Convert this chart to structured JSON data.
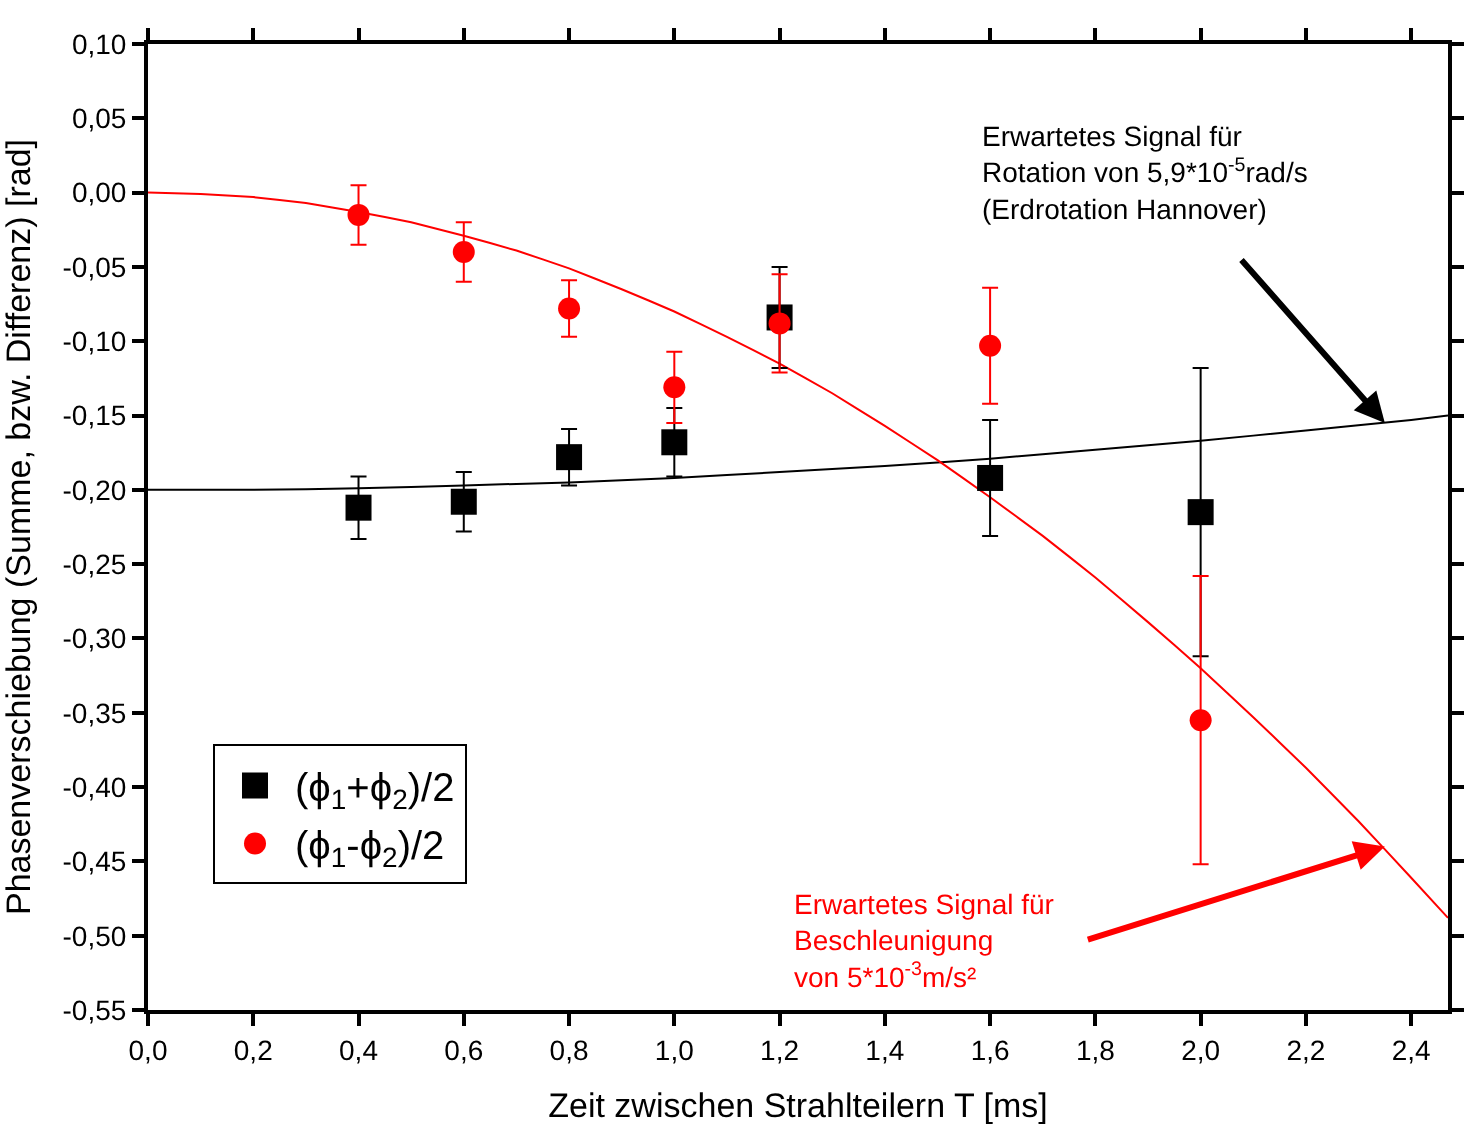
{
  "chart_data": {
    "type": "scatter",
    "xlabel": "Zeit zwischen Strahlteilern T [ms]",
    "ylabel": "Phasenverschiebung (Summe, bzw. Differenz) [rad]",
    "xlim": [
      0,
      2.47
    ],
    "ylim": [
      -0.55,
      0.1
    ],
    "xticks": [
      {
        "value": 0,
        "label": "0,0"
      },
      {
        "value": 0.2,
        "label": "0,2"
      },
      {
        "value": 0.4,
        "label": "0,4"
      },
      {
        "value": 0.6,
        "label": "0,6"
      },
      {
        "value": 0.8,
        "label": "0,8"
      },
      {
        "value": 1.0,
        "label": "1,0"
      },
      {
        "value": 1.2,
        "label": "1,2"
      },
      {
        "value": 1.4,
        "label": "1,4"
      },
      {
        "value": 1.6,
        "label": "1,6"
      },
      {
        "value": 1.8,
        "label": "1,8"
      },
      {
        "value": 2.0,
        "label": "2,0"
      },
      {
        "value": 2.2,
        "label": "2,2"
      },
      {
        "value": 2.4,
        "label": "2,4"
      }
    ],
    "yticks": [
      {
        "value": 0.1,
        "label": "0,10"
      },
      {
        "value": 0.05,
        "label": "0,05"
      },
      {
        "value": 0,
        "label": "0,00"
      },
      {
        "value": -0.05,
        "label": "-0,05"
      },
      {
        "value": -0.1,
        "label": "-0,10"
      },
      {
        "value": -0.15,
        "label": "-0,15"
      },
      {
        "value": -0.2,
        "label": "-0,20"
      },
      {
        "value": -0.25,
        "label": "-0,25"
      },
      {
        "value": -0.3,
        "label": "-0,30"
      },
      {
        "value": -0.35,
        "label": "-0,35"
      },
      {
        "value": -0.4,
        "label": "-0,40"
      },
      {
        "value": -0.45,
        "label": "-0,45"
      },
      {
        "value": -0.5,
        "label": "-0,50"
      },
      {
        "value": -0.55,
        "label": "-0,55"
      }
    ],
    "legend": "bottom left",
    "series": [
      {
        "type": "line",
        "color": "#000000",
        "marker": "none",
        "x": [
          0,
          0.2,
          0.4,
          0.6,
          0.8,
          1.0,
          1.2,
          1.4,
          1.6,
          1.8,
          2.0,
          2.2,
          2.4,
          2.47
        ],
        "values": [
          -0.2,
          -0.2,
          -0.199,
          -0.197,
          -0.195,
          -0.192,
          -0.188,
          -0.184,
          -0.179,
          -0.173,
          -0.167,
          -0.16,
          -0.153,
          -0.15
        ]
      },
      {
        "type": "line",
        "color": "#ff0000",
        "marker": "none",
        "x": [
          0,
          0.1,
          0.2,
          0.3,
          0.4,
          0.5,
          0.6,
          0.7,
          0.8,
          0.9,
          1.0,
          1.1,
          1.2,
          1.3,
          1.4,
          1.5,
          1.6,
          1.7,
          1.8,
          1.9,
          2.0,
          2.1,
          2.2,
          2.3,
          2.4,
          2.47
        ],
        "values": [
          0,
          -0.001,
          -0.003,
          -0.007,
          -0.013,
          -0.02,
          -0.029,
          -0.039,
          -0.051,
          -0.065,
          -0.08,
          -0.097,
          -0.115,
          -0.135,
          -0.157,
          -0.18,
          -0.205,
          -0.231,
          -0.259,
          -0.289,
          -0.32,
          -0.353,
          -0.387,
          -0.423,
          -0.461,
          -0.488
        ]
      },
      {
        "name": "(ϕ$_{1}$+ϕ$_{2}$)/2",
        "color": "#000000",
        "marker": "square",
        "x": [
          0.4,
          0.6,
          0.8,
          1.0,
          1.2,
          1.6,
          2.0
        ],
        "values": [
          -0.212,
          -0.208,
          -0.178,
          -0.168,
          -0.084,
          -0.192,
          -0.215
        ],
        "errors": [
          0.021,
          0.02,
          0.019,
          0.023,
          0.034,
          0.039,
          0.097
        ]
      },
      {
        "name": "(ϕ$_{1}$-ϕ$_{2}$)/2",
        "color": "#ff0000",
        "marker": "circle",
        "x": [
          0.4,
          0.6,
          0.8,
          1.0,
          1.2,
          1.6,
          2.0
        ],
        "values": [
          -0.015,
          -0.04,
          -0.078,
          -0.131,
          -0.088,
          -0.103,
          -0.355
        ],
        "errors": [
          0.02,
          0.02,
          0.019,
          0.024,
          0.033,
          0.039,
          0.097
        ]
      }
    ],
    "annotations": [
      {
        "text": "Erwartetes Signal für\nRotation von 5,9*10$^{-5}$rad/s\n(Erdrotation Hannover)",
        "x": 2.35,
        "y": -0.155
      },
      {
        "text": "Erwartetes Signal für\nBeschleunigung\nvon 5*10$^{-3}$m/s²",
        "x": 2.35,
        "y": -0.44
      }
    ]
  }
}
